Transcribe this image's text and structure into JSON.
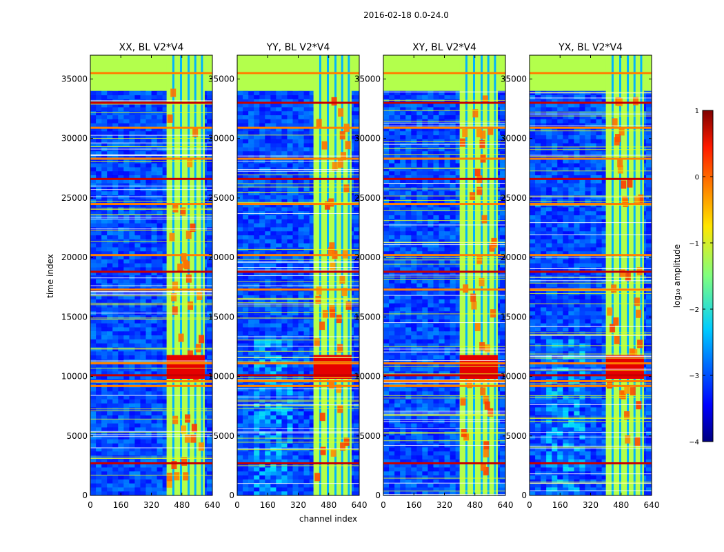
{
  "chart_data": {
    "type": "heatmap",
    "suptitle": "2016-02-18 0.0-24.0",
    "xlabel": "channel index",
    "ylabel": "time index",
    "xlim": [
      0,
      640
    ],
    "ylim": [
      0,
      37000
    ],
    "xticks": [
      0,
      160,
      320,
      480,
      640
    ],
    "yticks": [
      0,
      5000,
      10000,
      15000,
      20000,
      25000,
      30000,
      35000
    ],
    "x_tick_labels": [
      "0",
      "160",
      "320",
      "480",
      "640"
    ],
    "y_tick_labels": [
      "0",
      "5000",
      "10000",
      "15000",
      "20000",
      "25000",
      "30000",
      "35000"
    ],
    "panels": [
      {
        "title": "XX, BL V2*V4",
        "pol": "XX"
      },
      {
        "title": "YY, BL V2*V4",
        "pol": "YY"
      },
      {
        "title": "XY, BL V2*V4",
        "pol": "XY"
      },
      {
        "title": "YX, BL V2*V4",
        "pol": "YX"
      }
    ],
    "colorbar": {
      "label": "log₁₀ amplitude",
      "range": [
        -4,
        1
      ],
      "ticks": [
        1,
        0,
        -1,
        -2,
        -3,
        -4
      ],
      "tick_labels": [
        "1",
        "0",
        "−1",
        "−2",
        "−3",
        "−4"
      ],
      "colormap": "jet"
    },
    "features": {
      "flagged_band_channels": [
        400,
        600
      ],
      "bright_time_range": [
        9800,
        11800
      ],
      "top_saturated_time_range": [
        34000,
        37000
      ],
      "strong_rows": [
        2700,
        9200,
        9600,
        10100,
        11100,
        17300,
        18800,
        20200,
        24500,
        26600,
        28300,
        30900,
        33000,
        35500
      ]
    }
  }
}
